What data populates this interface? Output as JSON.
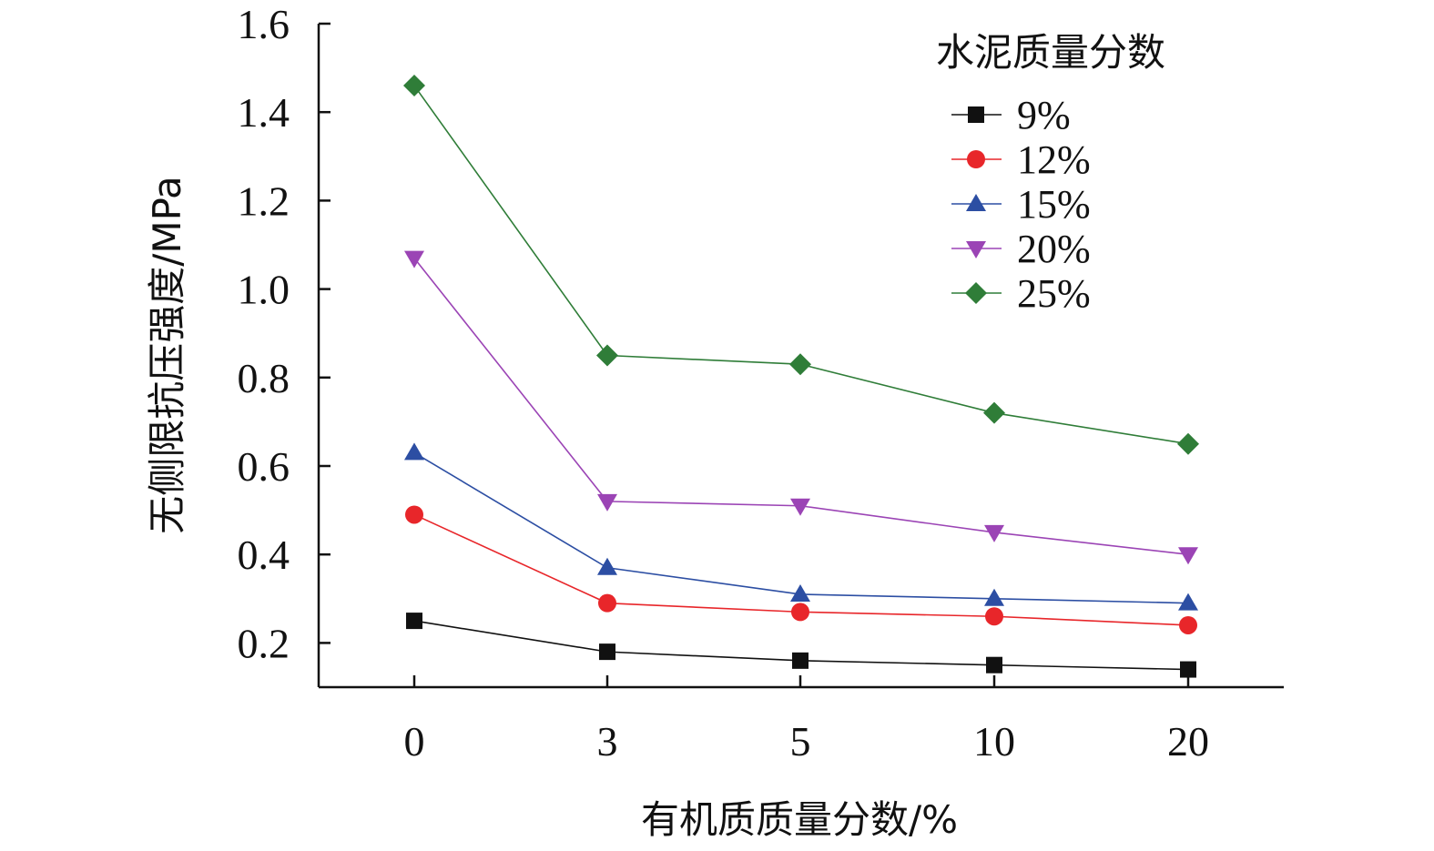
{
  "chart_data": {
    "type": "line",
    "title": "",
    "xlabel": "有机质质量分数/%",
    "ylabel": "无侧限抗压强度/MPa",
    "categories": [
      "0",
      "3",
      "5",
      "10",
      "20"
    ],
    "y_ticks": [
      "0.2",
      "0.4",
      "0.6",
      "0.8",
      "1.0",
      "1.2",
      "1.4",
      "1.6"
    ],
    "ylim": [
      0.1,
      1.6
    ],
    "legend_title": "水泥质量分数",
    "legend_position": "top-right",
    "grid": false,
    "series": [
      {
        "name": "9%",
        "color": "#111111",
        "marker": "square",
        "values": [
          0.25,
          0.18,
          0.16,
          0.15,
          0.14
        ]
      },
      {
        "name": "12%",
        "color": "#e8262a",
        "marker": "circle",
        "values": [
          0.49,
          0.29,
          0.27,
          0.26,
          0.24
        ]
      },
      {
        "name": "15%",
        "color": "#2c4ea3",
        "marker": "triangle-up",
        "values": [
          0.63,
          0.37,
          0.31,
          0.3,
          0.29
        ]
      },
      {
        "name": "20%",
        "color": "#9b44b5",
        "marker": "triangle-down",
        "values": [
          1.07,
          0.52,
          0.51,
          0.45,
          0.4
        ]
      },
      {
        "name": "25%",
        "color": "#2f7d38",
        "marker": "diamond",
        "values": [
          1.46,
          0.85,
          0.83,
          0.72,
          0.65
        ]
      }
    ]
  }
}
